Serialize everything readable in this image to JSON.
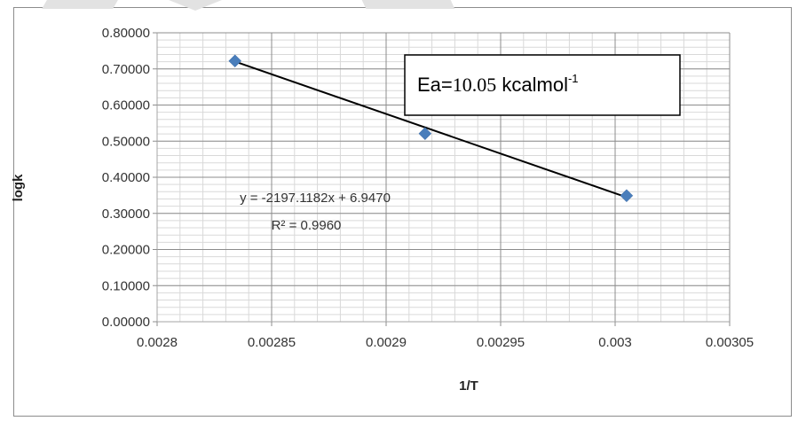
{
  "chart_data": {
    "type": "scatter",
    "title": "",
    "xlabel": "1/T",
    "ylabel": "logk",
    "xlim": [
      0.0028,
      0.00305
    ],
    "ylim": [
      0.0,
      0.8
    ],
    "x_ticks": [
      "0.0028",
      "0.00285",
      "0.0029",
      "0.00295",
      "0.003",
      "0.00305"
    ],
    "y_ticks": [
      "0.00000",
      "0.10000",
      "0.20000",
      "0.30000",
      "0.40000",
      "0.50000",
      "0.60000",
      "0.70000",
      "0.80000"
    ],
    "x_tick_values": [
      0.0028,
      0.00285,
      0.0029,
      0.00295,
      0.003,
      0.00305
    ],
    "y_tick_values": [
      0.0,
      0.1,
      0.2,
      0.3,
      0.4,
      0.5,
      0.6,
      0.7,
      0.8
    ],
    "grid": true,
    "series": [
      {
        "x": [
          0.002834,
          0.002917,
          0.003005
        ],
        "y": [
          0.722,
          0.521,
          0.349
        ],
        "marker": "diamond",
        "color": "#4a7ebb"
      }
    ],
    "trendline": {
      "type": "linear",
      "slope": -2197.1182,
      "intercept": 6.947,
      "color": "#000000"
    },
    "annotations": {
      "equation": "y = -2197.1182x + 6.9470",
      "r_squared": "R² = 0.9960",
      "ea_main": "Ea=",
      "ea_value": "10.05",
      "ea_unit": " kcalmol",
      "ea_sup": "-1"
    }
  }
}
